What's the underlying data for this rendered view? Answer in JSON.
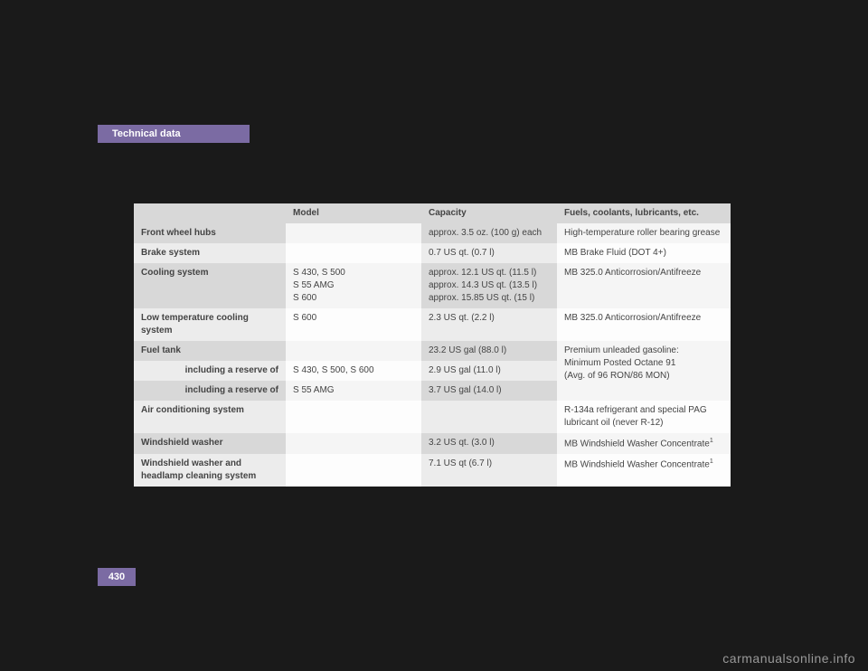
{
  "tab": "Technical data",
  "pagenum": "430",
  "watermark": "carmanualsonline.info",
  "headers": {
    "model": "Model",
    "capacity": "Capacity",
    "fuels": "Fuels, coolants, lubricants, etc."
  },
  "rows": {
    "fwh": {
      "label": "Front wheel hubs",
      "model": "",
      "cap": "approx. 3.5 oz. (100 g) each",
      "fuel": "High-temperature roller bearing grease"
    },
    "brake": {
      "label": "Brake system",
      "model": "",
      "cap": "0.7 US qt. (0.7 l)",
      "fuel": "MB Brake Fluid (DOT 4+)"
    },
    "cool": {
      "label": "Cooling system",
      "m1": "S 430, S 500",
      "m2": "S 55 AMG",
      "m3": "S 600",
      "c1": "approx. 12.1 US qt. (11.5 l)",
      "c2": "approx. 14.3 US qt. (13.5 l)",
      "c3": "approx. 15.85 US qt. (15 l)",
      "fuel": "MB 325.0 Anticorrosion/Antifreeze"
    },
    "lowtemp": {
      "label": "Low temperature cooling system",
      "model": "S 600",
      "cap": "2.3 US qt. (2.2 l)",
      "fuel": "MB 325.0 Anticorrosion/Antifreeze"
    },
    "tank": {
      "label": "Fuel tank",
      "model": "",
      "cap": "23.2 US gal (88.0 l)",
      "fuel1": "Premium unleaded gasoline:",
      "fuel2": "Minimum Posted Octane 91",
      "fuel3": "(Avg. of 96 RON/86 MON)"
    },
    "res1": {
      "label": "including a reserve of",
      "model": "S 430, S 500, S 600",
      "cap": "2.9 US gal (11.0 l)"
    },
    "res2": {
      "label": "including a reserve of",
      "model": "S 55 AMG",
      "cap": "3.7 US gal (14.0 l)"
    },
    "ac": {
      "label": "Air conditioning system",
      "model": "",
      "cap": "",
      "fuel": "R-134a refrigerant and special PAG lubricant oil (never R-12)"
    },
    "ww": {
      "label": "Windshield washer",
      "model": "",
      "cap": "3.2 US qt. (3.0 l)",
      "fuel": "MB Windshield Washer Concentrate"
    },
    "wwh": {
      "label1": "Windshield washer and",
      "label2": "headlamp cleaning system",
      "model": "",
      "cap": "7.1 US qt (6.7 l)",
      "fuel": "MB Windshield Washer Concentrate"
    }
  }
}
